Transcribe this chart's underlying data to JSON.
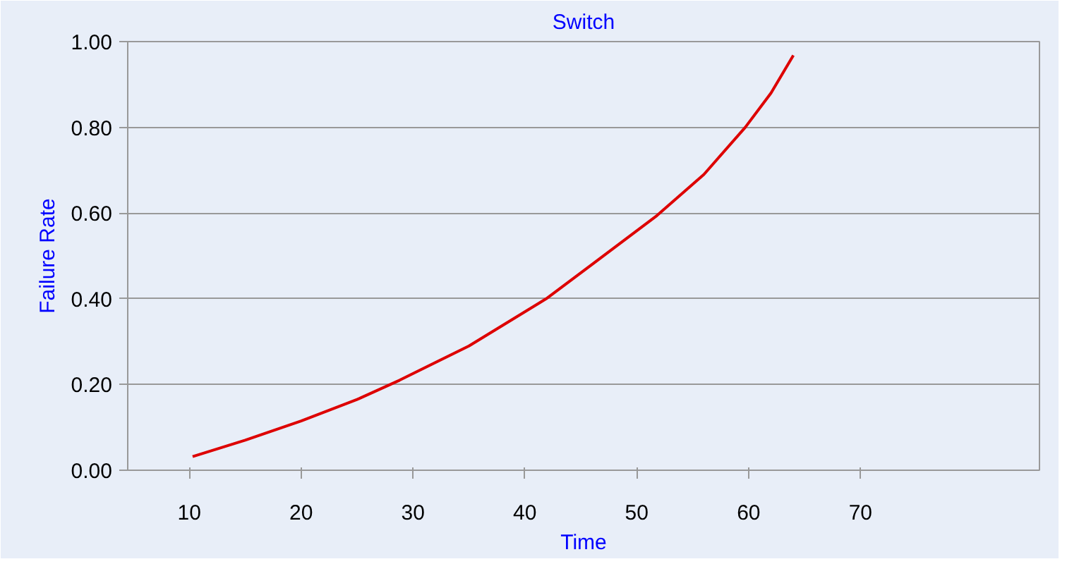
{
  "chart_data": {
    "type": "line",
    "title": "Switch",
    "xlabel": "Time",
    "ylabel": "Failure Rate",
    "x": [
      10.3,
      15,
      20,
      25,
      28.8,
      35,
      41.9,
      46,
      51.8,
      56,
      59.7,
      62,
      64
    ],
    "series": [
      {
        "color": "#dd0000",
        "values": [
          0.032,
          0.07,
          0.115,
          0.165,
          0.21,
          0.29,
          0.4,
          0.48,
          0.594,
          0.69,
          0.8,
          0.88,
          0.968
        ]
      }
    ],
    "xlim": [
      4.5,
      86
    ],
    "xticks": [
      10,
      20,
      30,
      40,
      50,
      60,
      70
    ],
    "ylim": [
      0,
      1
    ],
    "yticks": [
      {
        "value": 0,
        "label": "0.00"
      },
      {
        "value": 0.2,
        "label": "0.20"
      },
      {
        "value": 0.4,
        "label": "0.40"
      },
      {
        "value": 0.6,
        "label": "0.60"
      },
      {
        "value": 0.8,
        "label": "0.80"
      },
      {
        "value": 1,
        "label": "1.00"
      }
    ],
    "grid": "y",
    "marker": "none",
    "line_style": "solid"
  }
}
